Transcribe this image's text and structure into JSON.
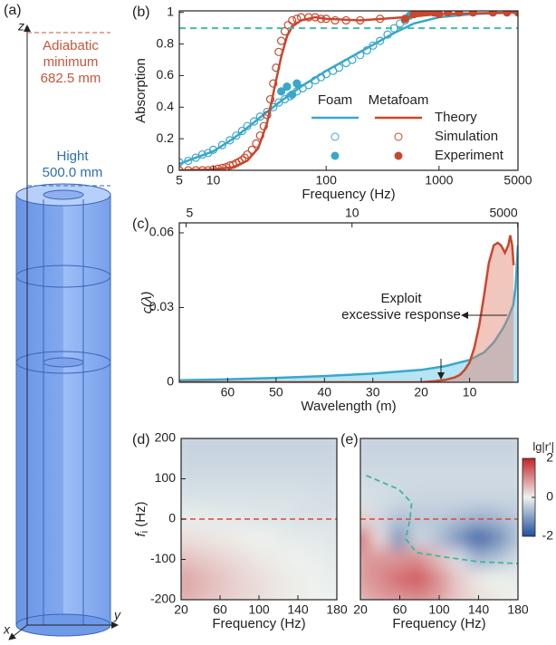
{
  "panel_a": {
    "label": "(a)",
    "axes": {
      "z": "z",
      "x": "x",
      "y": "y"
    },
    "adiabatic": [
      "Adiabatic",
      "minimum",
      "682.5 mm"
    ],
    "height": [
      "Hight",
      "500.0 mm"
    ]
  },
  "chart_data": [
    {
      "type": "line",
      "panel": "(b)",
      "xlabel": "Frequency (Hz)",
      "ylabel": "Absorption",
      "xlog": true,
      "xlim": [
        5,
        5000
      ],
      "xticks": [
        5,
        10,
        100,
        1000,
        5000
      ],
      "ylim": [
        0,
        1.01
      ],
      "yticks": [
        0,
        0.2,
        0.4,
        0.6,
        0.8,
        1
      ],
      "hline": {
        "value": 0.9,
        "color": "#3fc0a2"
      },
      "styles": [
        "Theory",
        "Simulation",
        "Experiment"
      ],
      "marks": [
        "line",
        "open-circle",
        "filled-circle"
      ],
      "series": [
        {
          "name": "Foam",
          "color": "#3aa7c9",
          "lines": [
            {
              "x": [
                5,
                7,
                10,
                15,
                20,
                30,
                40,
                60,
                100,
                150,
                200,
                300,
                400,
                600,
                1000,
                2000,
                5000
              ],
              "values": [
                0.04,
                0.08,
                0.12,
                0.2,
                0.27,
                0.37,
                0.44,
                0.53,
                0.63,
                0.7,
                0.75,
                0.82,
                0.87,
                0.93,
                0.97,
                0.99,
                1.0
              ]
            },
            {
              "x": [
                5,
                6,
                7,
                8,
                9,
                10,
                12,
                14,
                16,
                18,
                20,
                23,
                26,
                30,
                34,
                38,
                43,
                48,
                55,
                62,
                70,
                80,
                90,
                100,
                115,
                130,
                150,
                170,
                200,
                230,
                260,
                300,
                350,
                400,
                450,
                500
              ],
              "values": [
                0.05,
                0.06,
                0.08,
                0.1,
                0.11,
                0.13,
                0.16,
                0.19,
                0.22,
                0.25,
                0.28,
                0.31,
                0.34,
                0.37,
                0.4,
                0.43,
                0.45,
                0.47,
                0.5,
                0.52,
                0.54,
                0.57,
                0.59,
                0.61,
                0.63,
                0.65,
                0.68,
                0.7,
                0.73,
                0.76,
                0.79,
                0.82,
                0.86,
                0.9,
                0.93,
                0.95
              ]
            },
            {
              "x": [
                40,
                45,
                50,
                55,
                550
              ],
              "values": [
                0.5,
                0.53,
                0.48,
                0.55,
                0.98
              ]
            }
          ]
        },
        {
          "name": "Metafoam",
          "color": "#c9472e",
          "lines": [
            {
              "x": [
                5,
                10,
                15,
                20,
                25,
                30,
                35,
                40,
                45,
                50,
                60,
                80,
                100,
                200,
                500,
                1000,
                5000
              ],
              "values": [
                0,
                0.005,
                0.02,
                0.06,
                0.14,
                0.3,
                0.53,
                0.72,
                0.85,
                0.91,
                0.95,
                0.97,
                0.96,
                0.95,
                0.97,
                0.99,
                1.0
              ]
            },
            {
              "x": [
                5,
                6,
                7,
                8,
                9,
                10,
                11,
                12,
                13,
                14,
                15,
                16,
                17,
                18,
                19,
                20,
                22,
                24,
                26,
                28,
                30,
                32,
                34,
                36,
                38,
                40,
                43,
                46,
                50,
                55,
                60,
                70,
                80,
                90,
                100,
                120,
                150,
                200,
                300
              ],
              "values": [
                0,
                0,
                0,
                0,
                0,
                0.005,
                0.01,
                0.015,
                0.02,
                0.03,
                0.035,
                0.045,
                0.055,
                0.065,
                0.08,
                0.1,
                0.13,
                0.17,
                0.22,
                0.28,
                0.35,
                0.45,
                0.55,
                0.65,
                0.75,
                0.82,
                0.88,
                0.92,
                0.95,
                0.96,
                0.97,
                0.97,
                0.97,
                0.96,
                0.96,
                0.95,
                0.95,
                0.95,
                0.96
              ]
            },
            {
              "x": [
                500,
                600,
                700,
                800,
                900,
                1000,
                1200,
                1500,
                2000,
                3000,
                4000,
                5000
              ],
              "values": [
                0.96,
                0.99,
                1.0,
                1.01,
                1.0,
                0.99,
                1.0,
                1.0,
                1.0,
                1.0,
                1.0,
                1.0
              ]
            }
          ]
        }
      ]
    },
    {
      "type": "area",
      "panel": "(c)",
      "xlabel": "Wavelength (m)",
      "ylabel": "ς(λ)",
      "xlim": [
        70,
        0
      ],
      "xticks": [
        60,
        50,
        40,
        30,
        20,
        10
      ],
      "ylim": [
        0,
        0.064
      ],
      "yticks": [
        0,
        0.03,
        0.06
      ],
      "x2ticks": [
        {
          "value": 68.6,
          "label": "5"
        },
        {
          "value": 34.3,
          "label": "10"
        },
        {
          "value": 0.0686,
          "label": "5000"
        }
      ],
      "annotation": [
        "Exploit",
        "excessive response"
      ],
      "series": [
        {
          "name": "Foam",
          "color": "#3aa7c9",
          "fill": "#5cc3e6",
          "x": [
            70,
            60,
            50,
            40,
            30,
            20,
            15,
            10,
            7,
            5,
            3,
            2,
            1,
            0.5,
            0.2,
            0
          ],
          "values": [
            0.0008,
            0.0012,
            0.0018,
            0.0025,
            0.0035,
            0.005,
            0.0065,
            0.009,
            0.012,
            0.016,
            0.022,
            0.026,
            0.031,
            0.038,
            0.048,
            0.055
          ]
        },
        {
          "name": "Metafoam",
          "color": "#c9472e",
          "fill": "#e0806a",
          "x": [
            70,
            20,
            17,
            15,
            13,
            12,
            11,
            10,
            9,
            8,
            7,
            6,
            5,
            4.2,
            3.5,
            2.7,
            2,
            1.6,
            1.2,
            0.9
          ],
          "values": [
            0,
            0,
            0.0005,
            0.001,
            0.002,
            0.003,
            0.005,
            0.008,
            0.014,
            0.023,
            0.035,
            0.048,
            0.055,
            0.056,
            0.055,
            0.052,
            0.055,
            0.059,
            0.055,
            0.047
          ]
        }
      ]
    },
    {
      "type": "heatmap",
      "panel": "(d)",
      "xlabel": "Frequency (Hz)",
      "ylabel": {
        "main": "f",
        "sub": "i",
        "unit": " (Hz)"
      },
      "xlim": [
        20,
        180
      ],
      "xticks": [
        20,
        60,
        100,
        140,
        180
      ],
      "ylim": [
        -200,
        200
      ],
      "yticks": [
        -200,
        -100,
        0,
        100,
        200
      ],
      "hline": {
        "value": 0,
        "color": "#e0443a"
      },
      "clim": [
        -2,
        2
      ],
      "colormap": [
        "#1f4f9e",
        "#eef2ee",
        "#c4232a"
      ],
      "x": [
        20,
        40,
        60,
        80,
        100,
        120,
        140,
        160,
        180
      ],
      "y": [
        200,
        150,
        100,
        50,
        0,
        -50,
        -100,
        -150,
        -200
      ],
      "z": [
        [
          -0.4,
          -0.4,
          -0.4,
          -0.4,
          -0.4,
          -0.4,
          -0.4,
          -0.4,
          -0.4
        ],
        [
          -0.35,
          -0.35,
          -0.35,
          -0.35,
          -0.35,
          -0.35,
          -0.35,
          -0.35,
          -0.35
        ],
        [
          -0.3,
          -0.3,
          -0.3,
          -0.3,
          -0.3,
          -0.3,
          -0.3,
          -0.3,
          -0.3
        ],
        [
          -0.2,
          -0.2,
          -0.2,
          -0.2,
          -0.2,
          -0.2,
          -0.2,
          -0.25,
          -0.25
        ],
        [
          -0.05,
          -0.05,
          -0.1,
          -0.1,
          -0.15,
          -0.15,
          -0.2,
          -0.2,
          -0.2
        ],
        [
          0.2,
          0.15,
          0.1,
          0.05,
          0,
          -0.05,
          -0.1,
          -0.1,
          -0.15
        ],
        [
          0.5,
          0.4,
          0.3,
          0.2,
          0.1,
          0.05,
          0,
          -0.05,
          -0.1
        ],
        [
          0.8,
          0.6,
          0.45,
          0.3,
          0.2,
          0.1,
          0.05,
          0,
          -0.05
        ],
        [
          0.7,
          0.55,
          0.4,
          0.3,
          0.2,
          0.1,
          0.05,
          0,
          0
        ]
      ]
    },
    {
      "type": "heatmap",
      "panel": "(e)",
      "xlabel": "Frequency (Hz)",
      "xlim": [
        20,
        180
      ],
      "xticks": [
        20,
        60,
        100,
        140,
        180
      ],
      "ylim": [
        -200,
        200
      ],
      "hline": {
        "value": 0,
        "color": "#e0443a"
      },
      "clim": [
        -2,
        2
      ],
      "colormap": [
        "#1f4f9e",
        "#eef2ee",
        "#c4232a"
      ],
      "colorbar": {
        "label": "lg|r'|",
        "ticks": [
          -2,
          0,
          2
        ]
      },
      "contour": {
        "color": "#3fb79a",
        "x": [
          26,
          59,
          72,
          70,
          66,
          77,
          105,
          141,
          180
        ],
        "y": [
          108,
          74,
          40,
          -4,
          -49,
          -83,
          -94,
          -106,
          -110
        ]
      },
      "x": [
        20,
        40,
        60,
        80,
        100,
        120,
        140,
        160,
        180
      ],
      "y": [
        200,
        150,
        100,
        50,
        0,
        -50,
        -100,
        -150,
        -200
      ],
      "z": [
        [
          -0.4,
          -0.4,
          -0.4,
          -0.4,
          -0.4,
          -0.4,
          -0.4,
          -0.4,
          -0.4
        ],
        [
          -0.35,
          -0.35,
          -0.35,
          -0.35,
          -0.35,
          -0.35,
          -0.35,
          -0.35,
          -0.35
        ],
        [
          -0.3,
          -0.3,
          -0.3,
          -0.3,
          -0.3,
          -0.3,
          -0.3,
          -0.3,
          -0.3
        ],
        [
          -0.2,
          -0.25,
          -0.3,
          -0.35,
          -0.35,
          -0.35,
          -0.35,
          -0.35,
          -0.35
        ],
        [
          0.3,
          -0.3,
          -0.6,
          -0.5,
          -0.5,
          -0.6,
          -0.8,
          -0.7,
          -0.5
        ],
        [
          1.5,
          0.2,
          -1.2,
          -0.3,
          -0.6,
          -1.2,
          -1.8,
          -1.3,
          -0.6
        ],
        [
          0.8,
          0.9,
          0.9,
          1.0,
          0.5,
          -0.2,
          -0.8,
          -0.6,
          -0.3
        ],
        [
          0.8,
          1.0,
          1.3,
          1.5,
          1.0,
          0.4,
          0.1,
          0,
          -0.1
        ],
        [
          0.6,
          0.8,
          0.9,
          1.0,
          0.8,
          0.4,
          0.2,
          0.1,
          0
        ]
      ]
    }
  ]
}
